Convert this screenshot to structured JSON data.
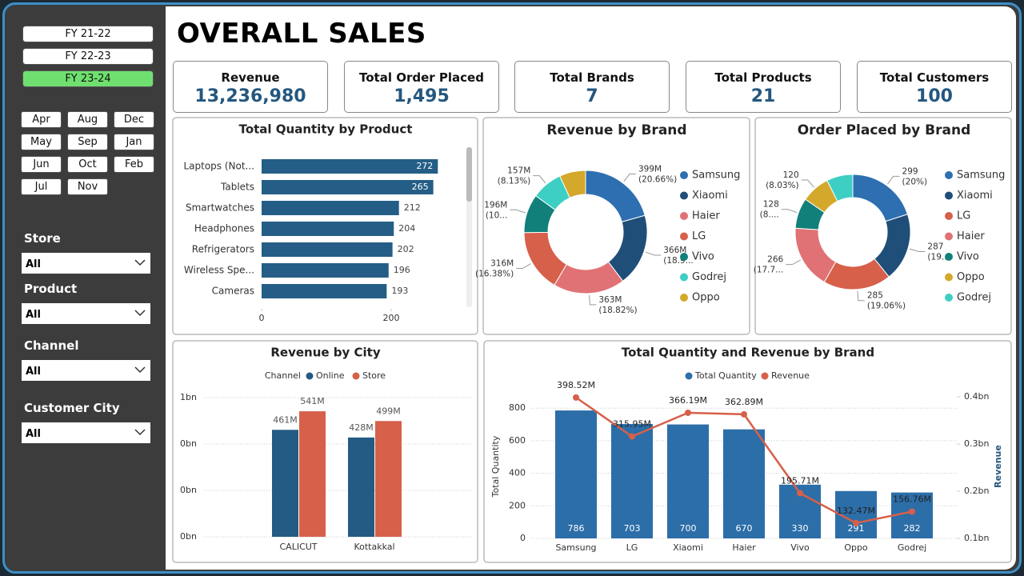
{
  "sidebar": {
    "fiscal_years": [
      "FY 21-22",
      "FY 22-23",
      "FY 23-24"
    ],
    "months": [
      "Apr",
      "Aug",
      "Dec",
      "May",
      "Sep",
      "Jan",
      "Jun",
      "Oct",
      "Feb",
      "Jul",
      "Nov"
    ],
    "filters": [
      {
        "label": "Store",
        "value": "All"
      },
      {
        "label": "Product",
        "value": "All"
      },
      {
        "label": "Channel",
        "value": "All"
      },
      {
        "label": "Customer City",
        "value": "All"
      }
    ]
  },
  "header": {
    "title": "OVERALL SALES"
  },
  "cards": [
    {
      "label": "Revenue",
      "value": "13,236,980"
    },
    {
      "label": "Total Order Placed",
      "value": "1,495"
    },
    {
      "label": "Total Brands",
      "value": "7"
    },
    {
      "label": "Total Products",
      "value": "21"
    },
    {
      "label": "Total Customers",
      "value": "100"
    }
  ],
  "chart_data": [
    {
      "type": "hbar",
      "title": "Total Quantity by Product",
      "categories": [
        "Laptops (Not...",
        "Tablets",
        "Smartwatches",
        "Headphones",
        "Refrigerators",
        "Wireless Spe...",
        "Cameras"
      ],
      "values": [
        272,
        265,
        212,
        204,
        202,
        196,
        193
      ],
      "color": "#245e86",
      "xlim": [
        0,
        300
      ],
      "xticks": [
        0,
        200
      ]
    },
    {
      "type": "donut",
      "title": "Revenue by Brand",
      "categories": [
        "Samsung",
        "Xiaomi",
        "Haier",
        "LG",
        "Vivo",
        "Godrej",
        "Oppo"
      ],
      "values": [
        398520000,
        366190000,
        362890000,
        315950000,
        195710000,
        156760000,
        132470000
      ],
      "value_labels": [
        "399M",
        "366M",
        "363M",
        "316M",
        "196M",
        "157M",
        null
      ],
      "share_labels": [
        "(20.66%)",
        "(18.9...",
        "(18.82%)",
        "(16.38%)",
        "(10...",
        "(8.13%)",
        null
      ],
      "colors": [
        "#2d6fb0",
        "#1f4e79",
        "#e07275",
        "#d6604a",
        "#12807a",
        "#3ecfc4",
        "#d4a82a"
      ]
    },
    {
      "type": "donut",
      "title": "Order Placed by Brand",
      "categories": [
        "Samsung",
        "Xiaomi",
        "LG",
        "Haier",
        "Vivo",
        "Oppo",
        "Godrej"
      ],
      "values": [
        299,
        287,
        285,
        266,
        128,
        120,
        110
      ],
      "value_labels": [
        "299",
        "287",
        "285",
        "266",
        "128",
        "120",
        null
      ],
      "share_labels": [
        "(20%)",
        "(19....",
        "(19.06%)",
        "(17.7...",
        "(8....",
        "(8.03%)",
        null
      ],
      "colors": [
        "#2d6fb0",
        "#1f4e79",
        "#d6604a",
        "#e07275",
        "#12807a",
        "#d4a82a",
        "#3ecfc4"
      ]
    },
    {
      "type": "grouped_bar",
      "title": "Revenue by City",
      "legend_title": "Channel",
      "categories": [
        "CALICUT",
        "Kottakkal"
      ],
      "series": [
        {
          "name": "Online",
          "color": "#235b85",
          "values": [
            461000000,
            428000000
          ],
          "value_labels": [
            "461M",
            "428M"
          ]
        },
        {
          "name": "Store",
          "color": "#d6604a",
          "values": [
            541000000,
            499000000
          ],
          "value_labels": [
            "541M",
            "499M"
          ]
        }
      ],
      "ylim": [
        0,
        600000000
      ],
      "yticks": [
        {
          "value": 0,
          "label": "0bn"
        },
        {
          "value": 200000000,
          "label": "0bn"
        },
        {
          "value": 400000000,
          "label": "0bn"
        },
        {
          "value": 600000000,
          "label": "1bn"
        }
      ],
      "grid": true
    },
    {
      "type": "combo",
      "title": "Total Quantity and Revenue by Brand",
      "categories": [
        "Samsung",
        "LG",
        "Xiaomi",
        "Haier",
        "Vivo",
        "Oppo",
        "Godrej"
      ],
      "series": [
        {
          "name": "Total Quantity",
          "color": "#2c6ea8",
          "values": [
            786,
            703,
            700,
            670,
            330,
            291,
            282
          ]
        },
        {
          "name": "Revenue",
          "color": "#d6604a",
          "axis": "y2",
          "values": [
            398520000,
            315950000,
            366190000,
            362890000,
            195710000,
            132470000,
            156760000
          ],
          "value_labels": [
            "398.52M",
            "315.95M",
            "366.19M",
            "362.89M",
            "195.71M",
            "132.47M",
            "156.76M"
          ]
        }
      ],
      "ylabel": "Total Quantity",
      "y2label": "Revenue",
      "ylim": [
        0,
        870
      ],
      "yticks": [
        0,
        200,
        400,
        600,
        800
      ],
      "y2lim": [
        100000000,
        400000000
      ],
      "y2ticks": [
        {
          "value": 100000000,
          "label": "0.1bn"
        },
        {
          "value": 200000000,
          "label": "0.2bn"
        },
        {
          "value": 300000000,
          "label": "0.3bn"
        },
        {
          "value": 400000000,
          "label": "0.4bn"
        }
      ],
      "grid": true
    }
  ]
}
